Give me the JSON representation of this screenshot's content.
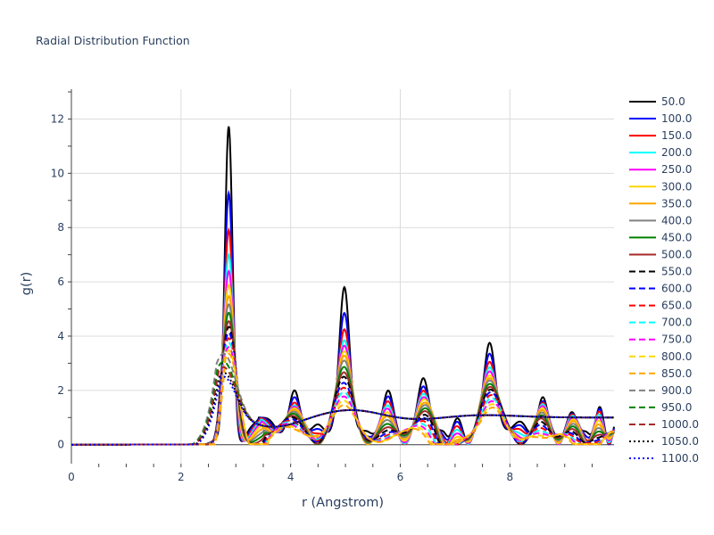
{
  "chart_data": {
    "type": "line",
    "title": "Radial Distribution Function",
    "xlabel": "r (Angstrom)",
    "ylabel": "g(r)",
    "xlim": [
      0,
      9.9
    ],
    "ylim": [
      -0.7,
      13.1
    ],
    "x_ticks": [
      0,
      2,
      4,
      6,
      8
    ],
    "y_ticks": [
      0,
      2,
      4,
      6,
      8,
      10,
      12
    ],
    "grid": true,
    "legend_position": "right",
    "peak_positions": [
      2.87,
      4.07,
      4.98,
      5.78,
      6.42,
      7.05,
      7.63,
      8.6,
      9.13,
      9.64,
      9.98
    ],
    "series": [
      {
        "name": "50.0",
        "color": "#000000",
        "dash": "solid",
        "first_peak": 12.4,
        "peak_heights": [
          12.4,
          2.05,
          5.85,
          2.05,
          2.5,
          1.1,
          3.8,
          1.8,
          1.25,
          1.45,
          1.2
        ]
      },
      {
        "name": "100.0",
        "color": "#0000ff",
        "dash": "solid",
        "first_peak": 9.95,
        "peak_heights": [
          9.95,
          1.8,
          4.9,
          1.85,
          2.2,
          1.05,
          3.4,
          1.65,
          1.2,
          1.4,
          1.15
        ]
      },
      {
        "name": "150.0",
        "color": "#ff0000",
        "dash": "solid",
        "first_peak": 8.6,
        "peak_heights": [
          8.6,
          1.6,
          4.3,
          1.7,
          2.05,
          1.0,
          3.1,
          1.6,
          1.18,
          1.35,
          1.12
        ]
      },
      {
        "name": "200.0",
        "color": "#00ffff",
        "dash": "solid",
        "first_peak": 7.7,
        "peak_heights": [
          7.7,
          1.5,
          3.9,
          1.6,
          1.95,
          1.0,
          2.9,
          1.55,
          1.15,
          1.3,
          1.1
        ]
      },
      {
        "name": "250.0",
        "color": "#ff00ff",
        "dash": "solid",
        "first_peak": 7.1,
        "peak_heights": [
          7.1,
          1.45,
          3.7,
          1.55,
          1.85,
          1.0,
          2.75,
          1.5,
          1.12,
          1.28,
          1.08
        ]
      },
      {
        "name": "300.0",
        "color": "#ffd700",
        "dash": "solid",
        "first_peak": 6.6,
        "peak_heights": [
          6.6,
          1.4,
          3.5,
          1.5,
          1.8,
          1.0,
          2.6,
          1.45,
          1.1,
          1.25,
          1.07
        ]
      },
      {
        "name": "350.0",
        "color": "#ffa500",
        "dash": "solid",
        "first_peak": 6.2,
        "peak_heights": [
          6.2,
          1.35,
          3.35,
          1.45,
          1.72,
          1.0,
          2.5,
          1.42,
          1.1,
          1.22,
          1.06
        ]
      },
      {
        "name": "400.0",
        "color": "#808080",
        "dash": "solid",
        "first_peak": 5.9,
        "peak_heights": [
          5.9,
          1.3,
          3.2,
          1.42,
          1.68,
          1.0,
          2.42,
          1.4,
          1.08,
          1.2,
          1.05
        ]
      },
      {
        "name": "450.0",
        "color": "#008000",
        "dash": "solid",
        "first_peak": 5.6,
        "peak_heights": [
          5.6,
          1.25,
          3.0,
          1.38,
          1.62,
          1.0,
          2.3,
          1.38,
          1.07,
          1.18,
          1.05
        ]
      },
      {
        "name": "500.0",
        "color": "#a52a2a",
        "dash": "solid",
        "first_peak": 5.3,
        "peak_heights": [
          5.3,
          1.2,
          2.85,
          1.35,
          1.58,
          1.0,
          2.2,
          1.35,
          1.06,
          1.15,
          1.04
        ]
      },
      {
        "name": "550.0",
        "color": "#000000",
        "dash": "dash",
        "first_peak": 5.1,
        "peak_heights": [
          5.1,
          1.18,
          2.75,
          1.32,
          1.52,
          1.0,
          2.12,
          1.32,
          1.05,
          1.13,
          1.04
        ]
      },
      {
        "name": "600.0",
        "color": "#0000ff",
        "dash": "dash",
        "first_peak": 4.9,
        "peak_heights": [
          4.9,
          1.15,
          2.6,
          1.3,
          1.48,
          1.0,
          2.05,
          1.3,
          1.05,
          1.12,
          1.03
        ]
      },
      {
        "name": "650.0",
        "color": "#ff0000",
        "dash": "dash",
        "first_peak": 4.7,
        "peak_heights": [
          4.7,
          1.12,
          2.5,
          1.27,
          1.44,
          1.0,
          1.98,
          1.28,
          1.04,
          1.1,
          1.03
        ]
      },
      {
        "name": "700.0",
        "color": "#00ffff",
        "dash": "dash",
        "first_peak": 4.55,
        "peak_heights": [
          4.55,
          1.1,
          2.42,
          1.25,
          1.4,
          1.0,
          1.92,
          1.26,
          1.04,
          1.08,
          1.02
        ]
      },
      {
        "name": "750.0",
        "color": "#ff00ff",
        "dash": "dash",
        "first_peak": 4.4,
        "peak_heights": [
          4.4,
          1.08,
          2.35,
          1.23,
          1.37,
          1.0,
          1.86,
          1.24,
          1.03,
          1.07,
          1.02
        ]
      },
      {
        "name": "800.0",
        "color": "#ffd700",
        "dash": "dash",
        "first_peak": 4.3,
        "peak_heights": [
          4.3,
          1.06,
          2.28,
          1.21,
          1.34,
          1.0,
          1.82,
          1.22,
          1.03,
          1.06,
          1.02
        ]
      },
      {
        "name": "850.0",
        "color": "#ffa500",
        "dash": "dash",
        "first_peak": 4.2,
        "peak_heights": [
          4.2,
          1.05,
          2.2,
          1.2,
          1.3,
          1.0,
          1.78,
          1.2,
          1.02,
          1.05,
          1.01
        ]
      },
      {
        "name": "900.0",
        "color": "#808080",
        "dash": "dash",
        "liquid": true,
        "first_peak": 3.4
      },
      {
        "name": "950.0",
        "color": "#008000",
        "dash": "dash",
        "liquid": true,
        "first_peak": 3.1
      },
      {
        "name": "1000.0",
        "color": "#a52a2a",
        "dash": "dash",
        "liquid": true,
        "first_peak": 2.9
      },
      {
        "name": "1050.0",
        "color": "#000000",
        "dash": "dot",
        "liquid": true,
        "first_peak": 2.7
      },
      {
        "name": "1100.0",
        "color": "#0000ff",
        "dash": "dot",
        "liquid": true,
        "first_peak": 2.55
      }
    ]
  }
}
